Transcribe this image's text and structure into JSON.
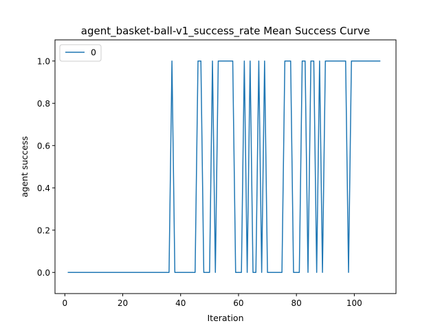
{
  "chart_data": {
    "type": "line",
    "title": "agent_basket-ball-v1_success_rate Mean Success Curve",
    "xlabel": "Iteration",
    "ylabel": "agent success",
    "xlim": [
      -3.4,
      114.4
    ],
    "ylim": [
      -0.1,
      1.1
    ],
    "xticks": [
      0,
      20,
      40,
      60,
      80,
      100
    ],
    "yticks": [
      0.0,
      0.2,
      0.4,
      0.6,
      0.8,
      1.0
    ],
    "ytick_labels": [
      "0.0",
      "0.2",
      "0.4",
      "0.6",
      "0.8",
      "1.0"
    ],
    "grid": false,
    "legend": {
      "position": "upper-left",
      "entries": [
        "0"
      ]
    },
    "colors": {
      "series0": "#1f77b4"
    },
    "series": [
      {
        "name": "0",
        "x": [
          1,
          2,
          3,
          4,
          5,
          6,
          7,
          8,
          9,
          10,
          11,
          12,
          13,
          14,
          15,
          16,
          17,
          18,
          19,
          20,
          21,
          22,
          23,
          24,
          25,
          26,
          27,
          28,
          29,
          30,
          31,
          32,
          33,
          34,
          35,
          36,
          37,
          38,
          39,
          40,
          41,
          42,
          43,
          44,
          45,
          46,
          47,
          48,
          49,
          50,
          51,
          52,
          53,
          54,
          55,
          56,
          57,
          58,
          59,
          60,
          61,
          62,
          63,
          64,
          65,
          66,
          67,
          68,
          69,
          70,
          71,
          72,
          73,
          74,
          75,
          76,
          77,
          78,
          79,
          80,
          81,
          82,
          83,
          84,
          85,
          86,
          87,
          88,
          89,
          90,
          91,
          92,
          93,
          94,
          95,
          96,
          97,
          98,
          99,
          100,
          101,
          102,
          103,
          104,
          105,
          106,
          107,
          108,
          109
        ],
        "y": [
          0,
          0,
          0,
          0,
          0,
          0,
          0,
          0,
          0,
          0,
          0,
          0,
          0,
          0,
          0,
          0,
          0,
          0,
          0,
          0,
          0,
          0,
          0,
          0,
          0,
          0,
          0,
          0,
          0,
          0,
          0,
          0,
          0,
          0,
          0,
          0,
          1,
          0,
          0,
          0,
          0,
          0,
          0,
          0,
          0,
          1,
          1,
          0,
          0,
          0,
          1,
          0,
          1,
          1,
          1,
          1,
          1,
          1,
          0,
          0,
          0,
          1,
          0,
          1,
          0,
          0,
          1,
          0,
          1,
          0,
          0,
          0,
          0,
          0,
          0,
          1,
          1,
          1,
          0,
          0,
          0,
          1,
          1,
          0,
          1,
          1,
          0,
          1,
          0,
          1,
          1,
          1,
          1,
          1,
          1,
          1,
          1,
          0,
          1,
          1,
          1,
          1,
          1,
          1,
          1,
          1,
          1,
          1,
          1
        ]
      }
    ]
  }
}
